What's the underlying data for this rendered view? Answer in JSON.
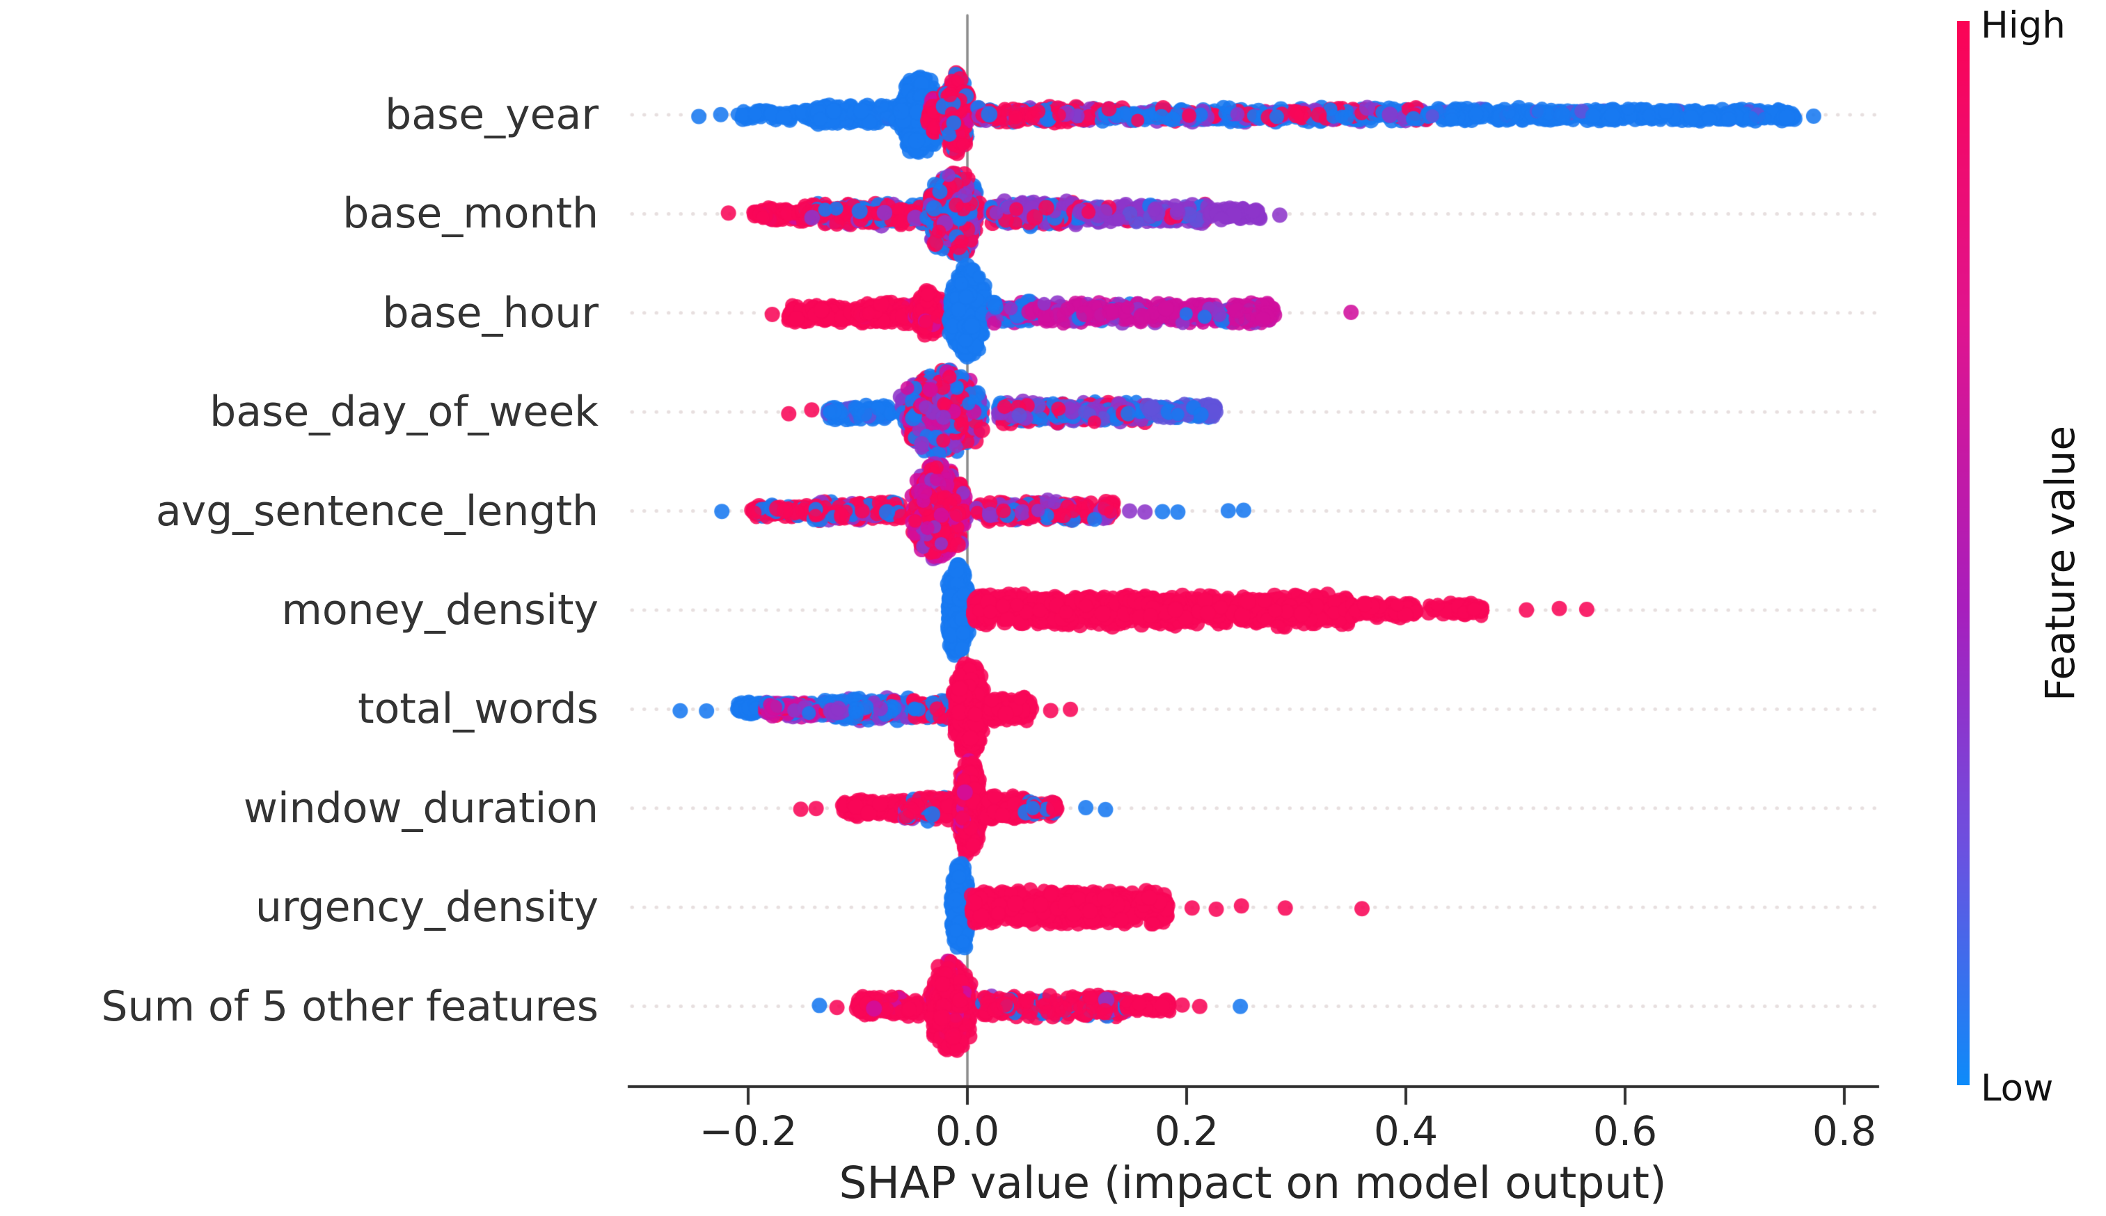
{
  "figure": {
    "background": "#ffffff"
  },
  "chart_data": {
    "type": "scatter",
    "subtype": "shap-beeswarm-summary",
    "title": "",
    "xlabel": "SHAP value (impact on model output)",
    "x_ticks": [
      -0.2,
      0.0,
      0.2,
      0.4,
      0.6,
      0.8
    ],
    "x_tick_labels": [
      "−0.2",
      "0.0",
      "0.2",
      "0.4",
      "0.6",
      "0.8"
    ],
    "xlim": [
      -0.31,
      0.83
    ],
    "grid": "dotted horizontal line per feature row",
    "zero_line_x": 0.0,
    "legend_position": "right colorbar",
    "palette": {
      "blue": "#1879f0",
      "red": "#f80758",
      "magenta": "#d00f9d",
      "purple": "#8d36c9",
      "blueviolet": "#6152d9"
    },
    "colorbar": {
      "label": "Feature value",
      "high_label": "High",
      "low_label": "Low",
      "top_color": "#fb0355",
      "bottom_color": "#0d8bf9",
      "gradient": [
        "#fb0355",
        "#e0148e",
        "#a81ebc",
        "#6b51e0",
        "#0d8bf9"
      ]
    },
    "features": [
      {
        "label": "base_year",
        "segments": [
          {
            "x0": -0.21,
            "x1": -0.14,
            "shape": "band",
            "hh": 9,
            "n": 70,
            "colors": {
              "blue": 1
            }
          },
          {
            "x0": -0.14,
            "x1": -0.06,
            "shape": "band",
            "hh": 17,
            "n": 180,
            "colors": {
              "blue": 0.95,
              "purple": 0.05
            }
          },
          {
            "x0": -0.068,
            "x1": -0.018,
            "shape": "bulge",
            "hh": 62,
            "n": 620,
            "colors": {
              "blue": 1
            }
          },
          {
            "x0": -0.04,
            "x1": -0.016,
            "shape": "bulge",
            "hh": 30,
            "n": 150,
            "colors": {
              "red": 0.85,
              "magenta": 0.15
            }
          },
          {
            "x0": -0.026,
            "x1": 0.006,
            "shape": "bulge",
            "hh": 64,
            "n": 430,
            "colors": {
              "red": 0.75,
              "blue": 0.2,
              "magenta": 0.05
            }
          },
          {
            "x0": 0.008,
            "x1": 0.12,
            "shape": "band",
            "hh": 12,
            "n": 270,
            "colors": {
              "red": 0.5,
              "blue": 0.35,
              "purple": 0.15
            }
          },
          {
            "x0": 0.12,
            "x1": 0.42,
            "shape": "band",
            "hh": 11,
            "n": 500,
            "colors": {
              "blue": 0.55,
              "red": 0.25,
              "purple": 0.2
            }
          },
          {
            "x0": 0.42,
            "x1": 0.755,
            "shape": "band",
            "hh": 10,
            "n": 540,
            "colors": {
              "blue": 0.95,
              "blueviolet": 0.05
            }
          }
        ],
        "dots": [
          {
            "x": -0.245,
            "color": "blue"
          },
          {
            "x": -0.225,
            "color": "blue"
          },
          {
            "x": 0.772,
            "color": "blue"
          }
        ]
      },
      {
        "label": "base_month",
        "segments": [
          {
            "x0": -0.195,
            "x1": -0.15,
            "shape": "band",
            "hh": 10,
            "n": 80,
            "colors": {
              "red": 0.9,
              "magenta": 0.1
            }
          },
          {
            "x0": -0.15,
            "x1": -0.04,
            "shape": "band",
            "hh": 17,
            "n": 320,
            "colors": {
              "red": 0.7,
              "blue": 0.2,
              "purple": 0.1
            }
          },
          {
            "x0": -0.045,
            "x1": 0.02,
            "shape": "bulge",
            "hh": 66,
            "n": 720,
            "colors": {
              "red": 0.45,
              "blue": 0.3,
              "purple": 0.25
            }
          },
          {
            "x0": 0.02,
            "x1": 0.1,
            "shape": "band",
            "hh": 19,
            "n": 280,
            "colors": {
              "purple": 0.45,
              "blue": 0.3,
              "red": 0.25
            }
          },
          {
            "x0": 0.1,
            "x1": 0.22,
            "shape": "band",
            "hh": 14,
            "n": 310,
            "colors": {
              "purple": 0.6,
              "blueviolet": 0.2,
              "blue": 0.1,
              "red": 0.1
            }
          },
          {
            "x0": 0.22,
            "x1": 0.268,
            "shape": "band",
            "hh": 9,
            "n": 60,
            "colors": {
              "purple": 1
            }
          }
        ],
        "dots": [
          {
            "x": -0.218,
            "color": "red"
          },
          {
            "x": 0.285,
            "color": "purple"
          }
        ]
      },
      {
        "label": "base_hour",
        "segments": [
          {
            "x0": -0.165,
            "x1": -0.1,
            "shape": "band",
            "hh": 13,
            "n": 160,
            "colors": {
              "red": 1
            }
          },
          {
            "x0": -0.1,
            "x1": -0.048,
            "shape": "band",
            "hh": 16,
            "n": 190,
            "colors": {
              "red": 0.95,
              "magenta": 0.05
            }
          },
          {
            "x0": -0.052,
            "x1": -0.018,
            "shape": "bulge",
            "hh": 34,
            "n": 270,
            "colors": {
              "red": 0.9,
              "magenta": 0.1
            }
          },
          {
            "x0": -0.024,
            "x1": 0.024,
            "shape": "bulge",
            "hh": 70,
            "n": 780,
            "colors": {
              "blue": 1
            }
          },
          {
            "x0": 0.024,
            "x1": 0.065,
            "shape": "band",
            "hh": 17,
            "n": 150,
            "colors": {
              "blue": 0.45,
              "magenta": 0.45,
              "purple": 0.1
            }
          },
          {
            "x0": 0.065,
            "x1": 0.28,
            "shape": "band",
            "hh": 16,
            "n": 540,
            "colors": {
              "magenta": 0.7,
              "purple": 0.2,
              "blue": 0.1
            }
          }
        ],
        "dots": [
          {
            "x": -0.178,
            "color": "red"
          },
          {
            "x": 0.35,
            "color": "magenta"
          }
        ]
      },
      {
        "label": "base_day_of_week",
        "segments": [
          {
            "x0": -0.127,
            "x1": -0.07,
            "shape": "band",
            "hh": 13,
            "n": 140,
            "colors": {
              "blue": 0.9,
              "blueviolet": 0.1
            }
          },
          {
            "x0": -0.075,
            "x1": 0.028,
            "shape": "bulge",
            "hh": 66,
            "n": 820,
            "colors": {
              "blue": 0.33,
              "red": 0.3,
              "purple": 0.27,
              "magenta": 0.1
            }
          },
          {
            "x0": 0.028,
            "x1": 0.165,
            "shape": "band",
            "hh": 17,
            "n": 400,
            "colors": {
              "blue": 0.3,
              "purple": 0.35,
              "red": 0.25,
              "blueviolet": 0.1
            }
          },
          {
            "x0": 0.165,
            "x1": 0.228,
            "shape": "band",
            "hh": 12,
            "n": 120,
            "colors": {
              "blueviolet": 0.7,
              "blue": 0.3
            }
          }
        ],
        "dots": [
          {
            "x": -0.163,
            "color": "red"
          },
          {
            "x": -0.142,
            "color": "red"
          }
        ]
      },
      {
        "label": "avg_sentence_length",
        "segments": [
          {
            "x0": -0.197,
            "x1": -0.14,
            "shape": "band",
            "hh": 11,
            "n": 130,
            "colors": {
              "red": 0.75,
              "blue": 0.25
            }
          },
          {
            "x0": -0.14,
            "x1": -0.06,
            "shape": "band",
            "hh": 14,
            "n": 240,
            "colors": {
              "red": 0.7,
              "blue": 0.2,
              "purple": 0.1
            }
          },
          {
            "x0": -0.06,
            "x1": 0.008,
            "shape": "bulge",
            "hh": 72,
            "n": 880,
            "colors": {
              "red": 0.5,
              "magenta": 0.3,
              "purple": 0.2
            }
          },
          {
            "x0": 0.008,
            "x1": 0.133,
            "shape": "band",
            "hh": 16,
            "n": 340,
            "colors": {
              "red": 0.6,
              "purple": 0.25,
              "blue": 0.15
            }
          }
        ],
        "dots": [
          {
            "x": -0.224,
            "color": "blue"
          },
          {
            "x": 0.148,
            "color": "purple"
          },
          {
            "x": 0.162,
            "color": "purple"
          },
          {
            "x": 0.178,
            "color": "blue"
          },
          {
            "x": 0.192,
            "color": "blue"
          },
          {
            "x": 0.238,
            "color": "blue"
          },
          {
            "x": 0.252,
            "color": "blue"
          }
        ]
      },
      {
        "label": "money_density",
        "segments": [
          {
            "x0": -0.022,
            "x1": 0.005,
            "shape": "bulge",
            "hh": 70,
            "n": 680,
            "colors": {
              "blue": 1
            }
          },
          {
            "x0": 0.005,
            "x1": 0.35,
            "shape": "band",
            "hh": 24,
            "n": 1150,
            "colors": {
              "red": 1
            }
          },
          {
            "x0": 0.35,
            "x1": 0.41,
            "shape": "band",
            "hh": 12,
            "n": 110,
            "colors": {
              "red": 1
            }
          },
          {
            "x0": 0.42,
            "x1": 0.47,
            "shape": "band",
            "hh": 10,
            "n": 60,
            "colors": {
              "red": 1
            }
          }
        ],
        "dots": [
          {
            "x": 0.51,
            "color": "red"
          },
          {
            "x": 0.54,
            "color": "red"
          },
          {
            "x": 0.565,
            "color": "red"
          }
        ]
      },
      {
        "label": "total_words",
        "segments": [
          {
            "x0": -0.21,
            "x1": -0.185,
            "shape": "band",
            "hh": 10,
            "n": 45,
            "colors": {
              "blue": 1
            }
          },
          {
            "x0": -0.185,
            "x1": -0.125,
            "shape": "band",
            "hh": 13,
            "n": 170,
            "colors": {
              "magenta": 0.4,
              "purple": 0.25,
              "blue": 0.2,
              "red": 0.15
            }
          },
          {
            "x0": -0.125,
            "x1": -0.05,
            "shape": "band",
            "hh": 17,
            "n": 280,
            "colors": {
              "blue": 0.6,
              "purple": 0.25,
              "red": 0.15
            }
          },
          {
            "x0": -0.05,
            "x1": -0.018,
            "shape": "band",
            "hh": 15,
            "n": 130,
            "colors": {
              "red": 0.55,
              "blue": 0.45
            }
          },
          {
            "x0": -0.018,
            "x1": 0.02,
            "shape": "bulge",
            "hh": 72,
            "n": 720,
            "colors": {
              "red": 1
            }
          },
          {
            "x0": 0.02,
            "x1": 0.058,
            "shape": "band",
            "hh": 19,
            "n": 130,
            "colors": {
              "red": 1
            }
          }
        ],
        "dots": [
          {
            "x": -0.262,
            "color": "blue"
          },
          {
            "x": -0.238,
            "color": "blue"
          },
          {
            "x": 0.076,
            "color": "red"
          },
          {
            "x": 0.094,
            "color": "red"
          }
        ]
      },
      {
        "label": "window_duration",
        "segments": [
          {
            "x0": -0.114,
            "x1": -0.058,
            "shape": "band",
            "hh": 14,
            "n": 140,
            "colors": {
              "red": 1
            }
          },
          {
            "x0": -0.058,
            "x1": -0.012,
            "shape": "band",
            "hh": 19,
            "n": 190,
            "colors": {
              "red": 0.75,
              "purple": 0.15,
              "blue": 0.1
            }
          },
          {
            "x0": -0.012,
            "x1": 0.016,
            "shape": "bulge",
            "hh": 72,
            "n": 680,
            "colors": {
              "red": 0.92,
              "magenta": 0.08
            }
          },
          {
            "x0": 0.016,
            "x1": 0.052,
            "shape": "band",
            "hh": 19,
            "n": 160,
            "colors": {
              "red": 1
            }
          },
          {
            "x0": 0.052,
            "x1": 0.082,
            "shape": "band",
            "hh": 12,
            "n": 80,
            "colors": {
              "red": 0.8,
              "blue": 0.2
            }
          }
        ],
        "dots": [
          {
            "x": -0.152,
            "color": "red"
          },
          {
            "x": -0.138,
            "color": "red"
          },
          {
            "x": 0.108,
            "color": "blue"
          },
          {
            "x": 0.126,
            "color": "blue"
          }
        ]
      },
      {
        "label": "urgency_density",
        "segments": [
          {
            "x0": -0.018,
            "x1": 0.004,
            "shape": "bulge",
            "hh": 70,
            "n": 640,
            "colors": {
              "blue": 1
            }
          },
          {
            "x0": 0.004,
            "x1": 0.183,
            "shape": "band",
            "hh": 26,
            "n": 740,
            "colors": {
              "red": 1
            }
          }
        ],
        "dots": [
          {
            "x": 0.205,
            "color": "red"
          },
          {
            "x": 0.227,
            "color": "red"
          },
          {
            "x": 0.25,
            "color": "red"
          },
          {
            "x": 0.29,
            "color": "red"
          },
          {
            "x": 0.36,
            "color": "red"
          }
        ]
      },
      {
        "label": "Sum of 5 other features",
        "segments": [
          {
            "x0": -0.102,
            "x1": -0.042,
            "shape": "band",
            "hh": 15,
            "n": 150,
            "colors": {
              "red": 0.9,
              "magenta": 0.1
            }
          },
          {
            "x0": -0.042,
            "x1": 0.012,
            "shape": "bulge",
            "hh": 70,
            "n": 620,
            "colors": {
              "red": 0.9,
              "magenta": 0.1
            }
          },
          {
            "x0": 0.012,
            "x1": 0.145,
            "shape": "band",
            "hh": 17,
            "n": 350,
            "colors": {
              "red": 0.68,
              "blue": 0.25,
              "purple": 0.07
            }
          },
          {
            "x0": 0.145,
            "x1": 0.185,
            "shape": "band",
            "hh": 11,
            "n": 70,
            "colors": {
              "red": 1
            }
          }
        ],
        "dots": [
          {
            "x": -0.135,
            "color": "blue"
          },
          {
            "x": -0.119,
            "color": "red"
          },
          {
            "x": 0.196,
            "color": "red"
          },
          {
            "x": 0.212,
            "color": "red"
          },
          {
            "x": 0.249,
            "color": "blue"
          }
        ]
      }
    ]
  }
}
